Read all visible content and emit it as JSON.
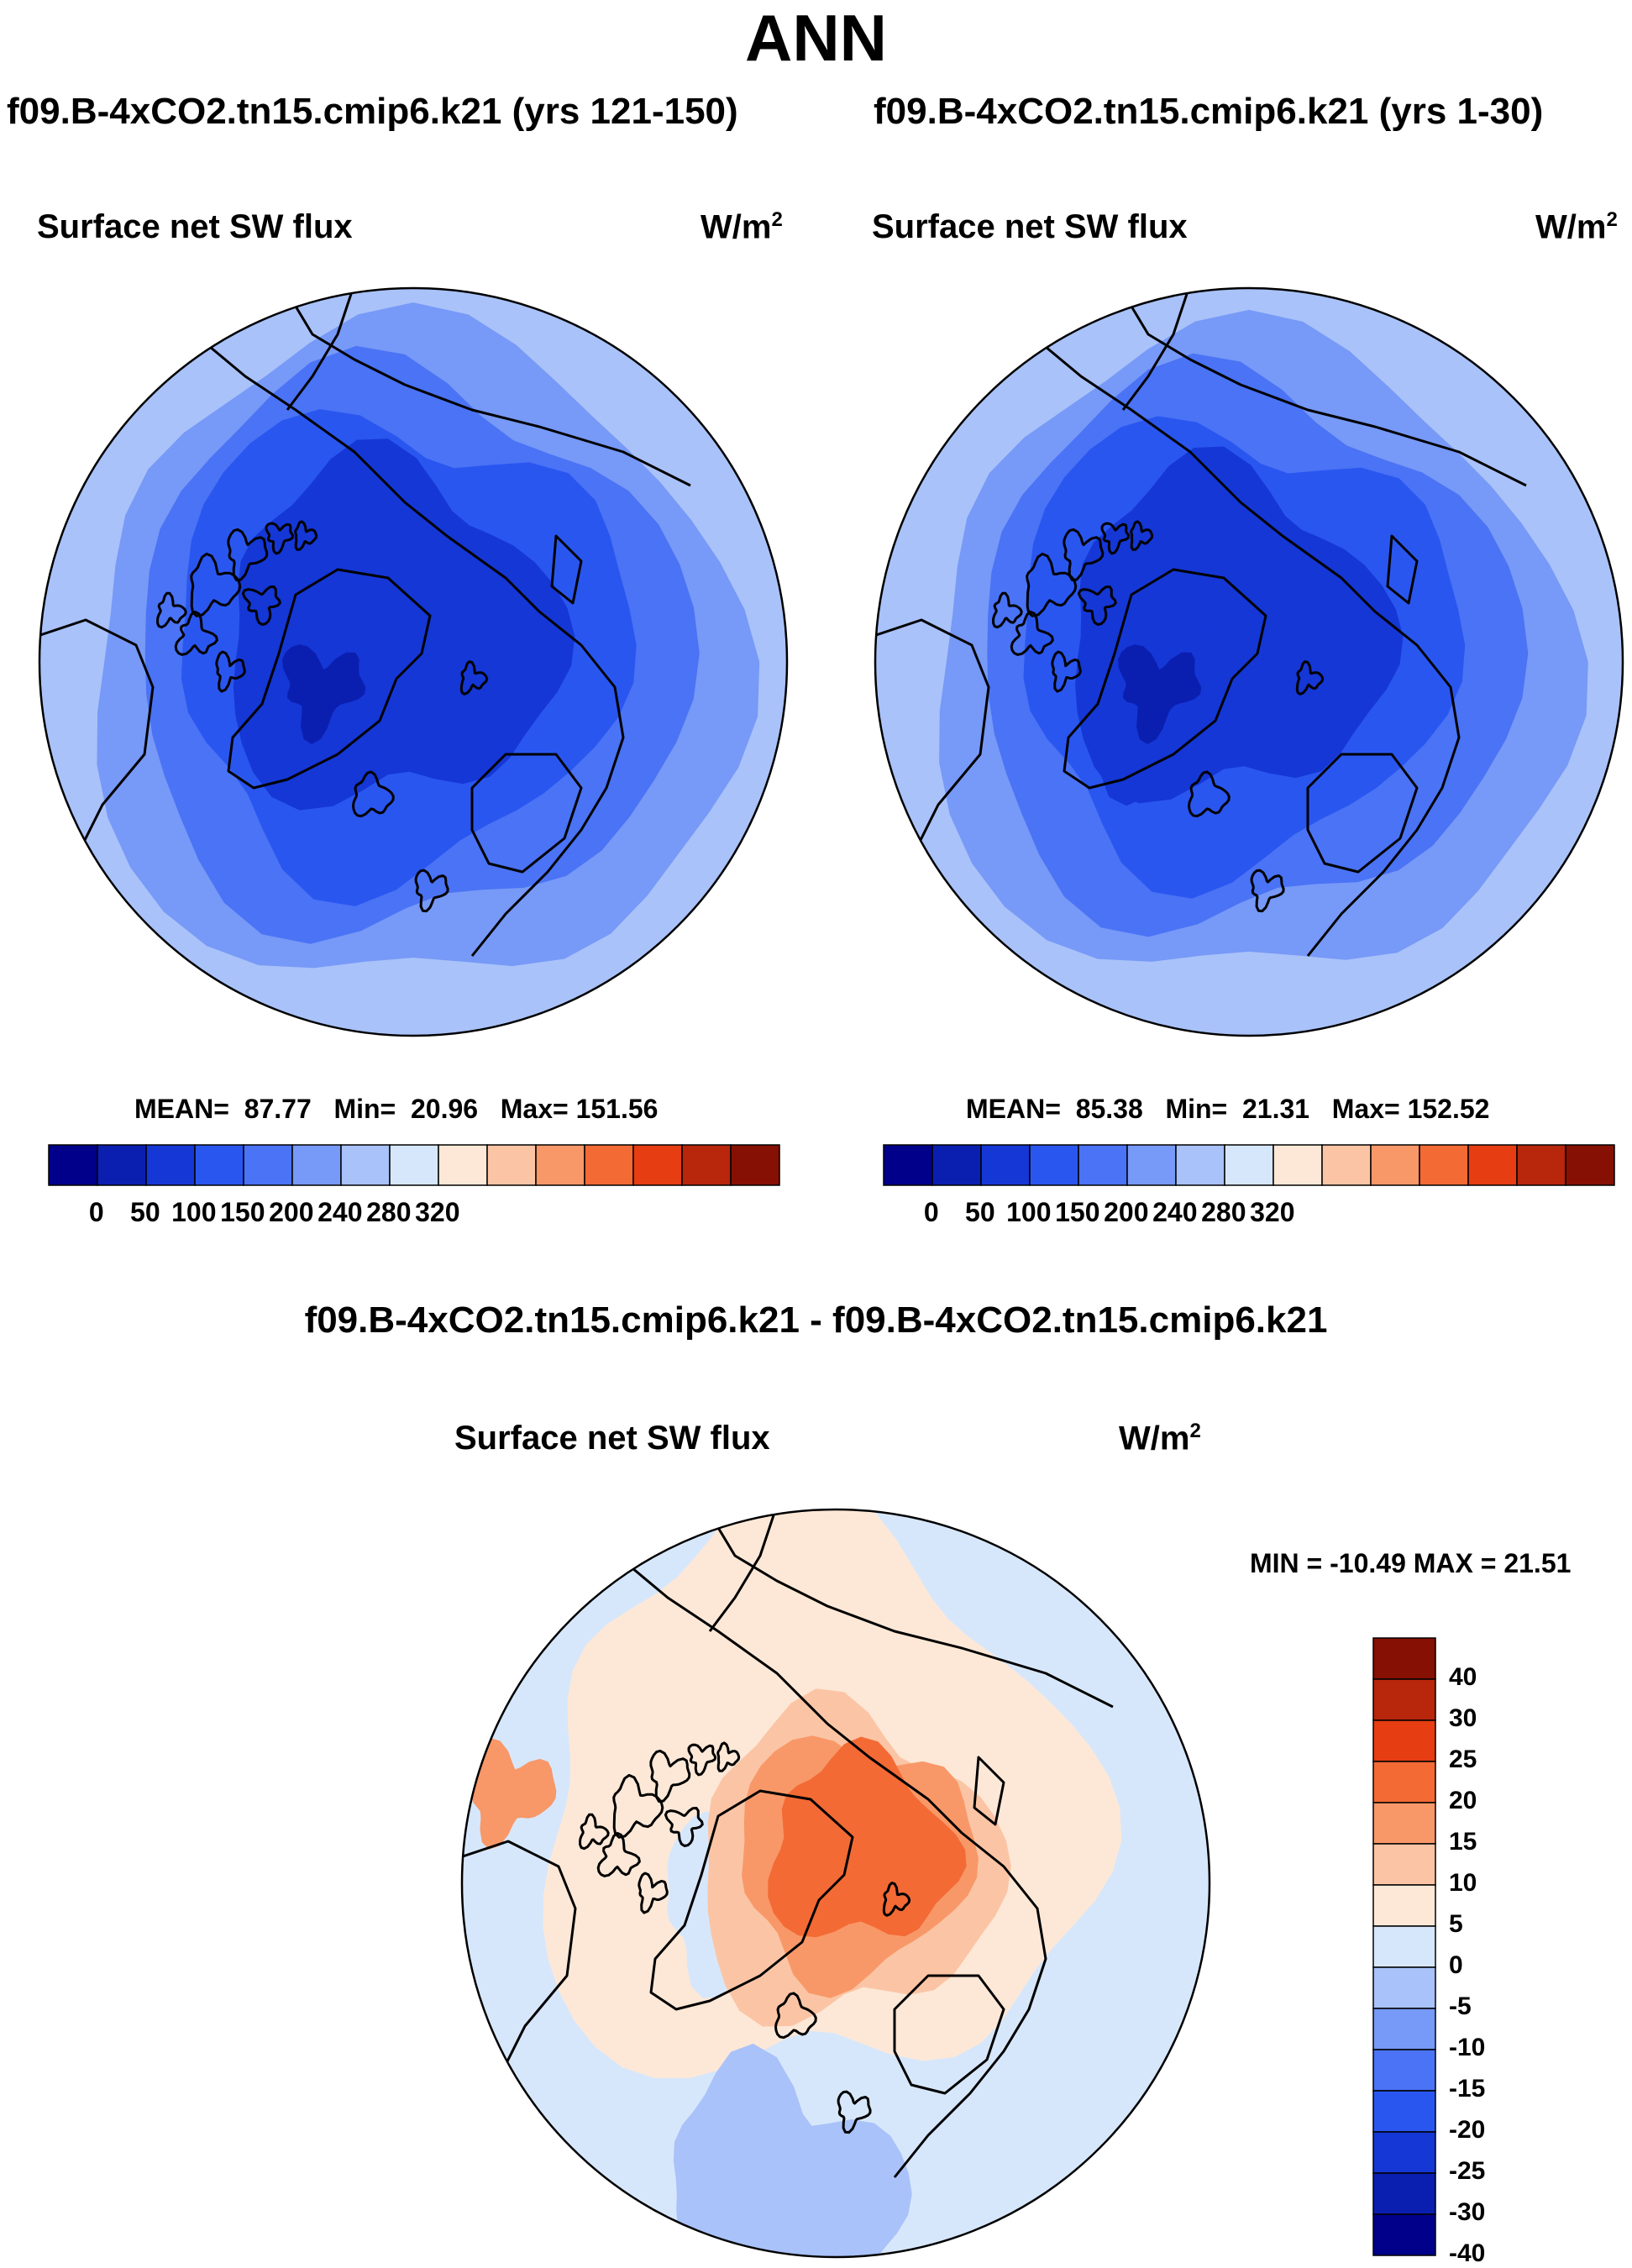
{
  "chart_data": [
    {
      "type": "heatmap",
      "projection": "north-polar-stereographic",
      "case_title": "f09.B-4xCO2.tn15.cmip6.k21 (yrs 121-150)",
      "variable": "Surface net SW flux",
      "units_base": "W/m",
      "units_exp": "2",
      "stats": {
        "mean_label": "MEAN=",
        "mean": "87.77",
        "min_label": "Min=",
        "min": "20.96",
        "max_label": "Max=",
        "max": "151.56"
      },
      "colorbar": {
        "orientation": "horizontal",
        "tick_labels": [
          "0",
          "50",
          "100",
          "150",
          "200",
          "240",
          "280",
          "320"
        ]
      }
    },
    {
      "type": "heatmap",
      "projection": "north-polar-stereographic",
      "case_title": "f09.B-4xCO2.tn15.cmip6.k21 (yrs 1-30)",
      "variable": "Surface net SW flux",
      "units_base": "W/m",
      "units_exp": "2",
      "stats": {
        "mean_label": "MEAN=",
        "mean": "85.38",
        "min_label": "Min=",
        "min": "21.31",
        "max_label": "Max=",
        "max": "152.52"
      },
      "colorbar": {
        "orientation": "horizontal",
        "tick_labels": [
          "0",
          "50",
          "100",
          "150",
          "200",
          "240",
          "280",
          "320"
        ]
      }
    },
    {
      "type": "heatmap",
      "projection": "north-polar-stereographic",
      "case_title": "f09.B-4xCO2.tn15.cmip6.k21 - f09.B-4xCO2.tn15.cmip6.k21",
      "variable": "Surface net SW flux",
      "units_base": "W/m",
      "units_exp": "2",
      "stats_text": "MIN = -10.49 MAX =  21.51",
      "colorbar": {
        "orientation": "vertical",
        "tick_labels": [
          "40",
          "30",
          "25",
          "20",
          "15",
          "10",
          "5",
          "0",
          "-5",
          "-10",
          "-15",
          "-20",
          "-25",
          "-30",
          "-40"
        ]
      }
    }
  ],
  "page_title": "ANN",
  "colors": {
    "abs_scale": [
      "#00008b",
      "#0a1fb0",
      "#1537d6",
      "#2a56f0",
      "#4a73f5",
      "#7799f7",
      "#a9c2f9",
      "#d7e7fb",
      "#fde8d7",
      "#fbc5a5",
      "#f89868",
      "#f36a35",
      "#e63d12",
      "#b8260b",
      "#861003"
    ],
    "diff_scale": [
      "#861003",
      "#b8260b",
      "#e63d12",
      "#f36a35",
      "#f89868",
      "#fbc5a5",
      "#fde8d7",
      "#d7e7fb",
      "#a9c2f9",
      "#7799f7",
      "#4a73f5",
      "#2a56f0",
      "#1537d6",
      "#0a1fb0",
      "#00008b"
    ],
    "coast": "#000000"
  }
}
